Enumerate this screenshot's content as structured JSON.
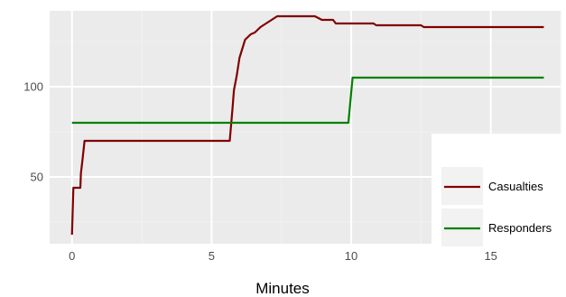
{
  "chart_data": {
    "type": "line",
    "xlabel": "Minutes",
    "ylabel": "",
    "xlim": [
      -0.8,
      17.5
    ],
    "ylim": [
      13,
      142
    ],
    "x_ticks": [
      0,
      5,
      10,
      15
    ],
    "y_ticks": [
      50,
      100
    ],
    "grid": true,
    "legend": "bottom-right",
    "series": [
      {
        "name": "Casualties",
        "color": "#800000",
        "points": [
          [
            0,
            18
          ],
          [
            0.05,
            44
          ],
          [
            0.3,
            44
          ],
          [
            0.32,
            52
          ],
          [
            0.38,
            60
          ],
          [
            0.45,
            70
          ],
          [
            5.65,
            70
          ],
          [
            5.75,
            88
          ],
          [
            5.8,
            98
          ],
          [
            5.9,
            106
          ],
          [
            6.0,
            116
          ],
          [
            6.1,
            121
          ],
          [
            6.2,
            126
          ],
          [
            6.4,
            129
          ],
          [
            6.55,
            130
          ],
          [
            6.75,
            133
          ],
          [
            6.95,
            135
          ],
          [
            7.15,
            137
          ],
          [
            7.35,
            139
          ],
          [
            8.7,
            139
          ],
          [
            8.95,
            137
          ],
          [
            9.35,
            137
          ],
          [
            9.45,
            135
          ],
          [
            10.8,
            135
          ],
          [
            10.9,
            134
          ],
          [
            12.5,
            134
          ],
          [
            12.6,
            133
          ],
          [
            16.9,
            133
          ]
        ]
      },
      {
        "name": "Responders",
        "color": "#008000",
        "points": [
          [
            0,
            80
          ],
          [
            9.9,
            80
          ],
          [
            10.05,
            105
          ],
          [
            16.9,
            105
          ]
        ]
      }
    ]
  }
}
